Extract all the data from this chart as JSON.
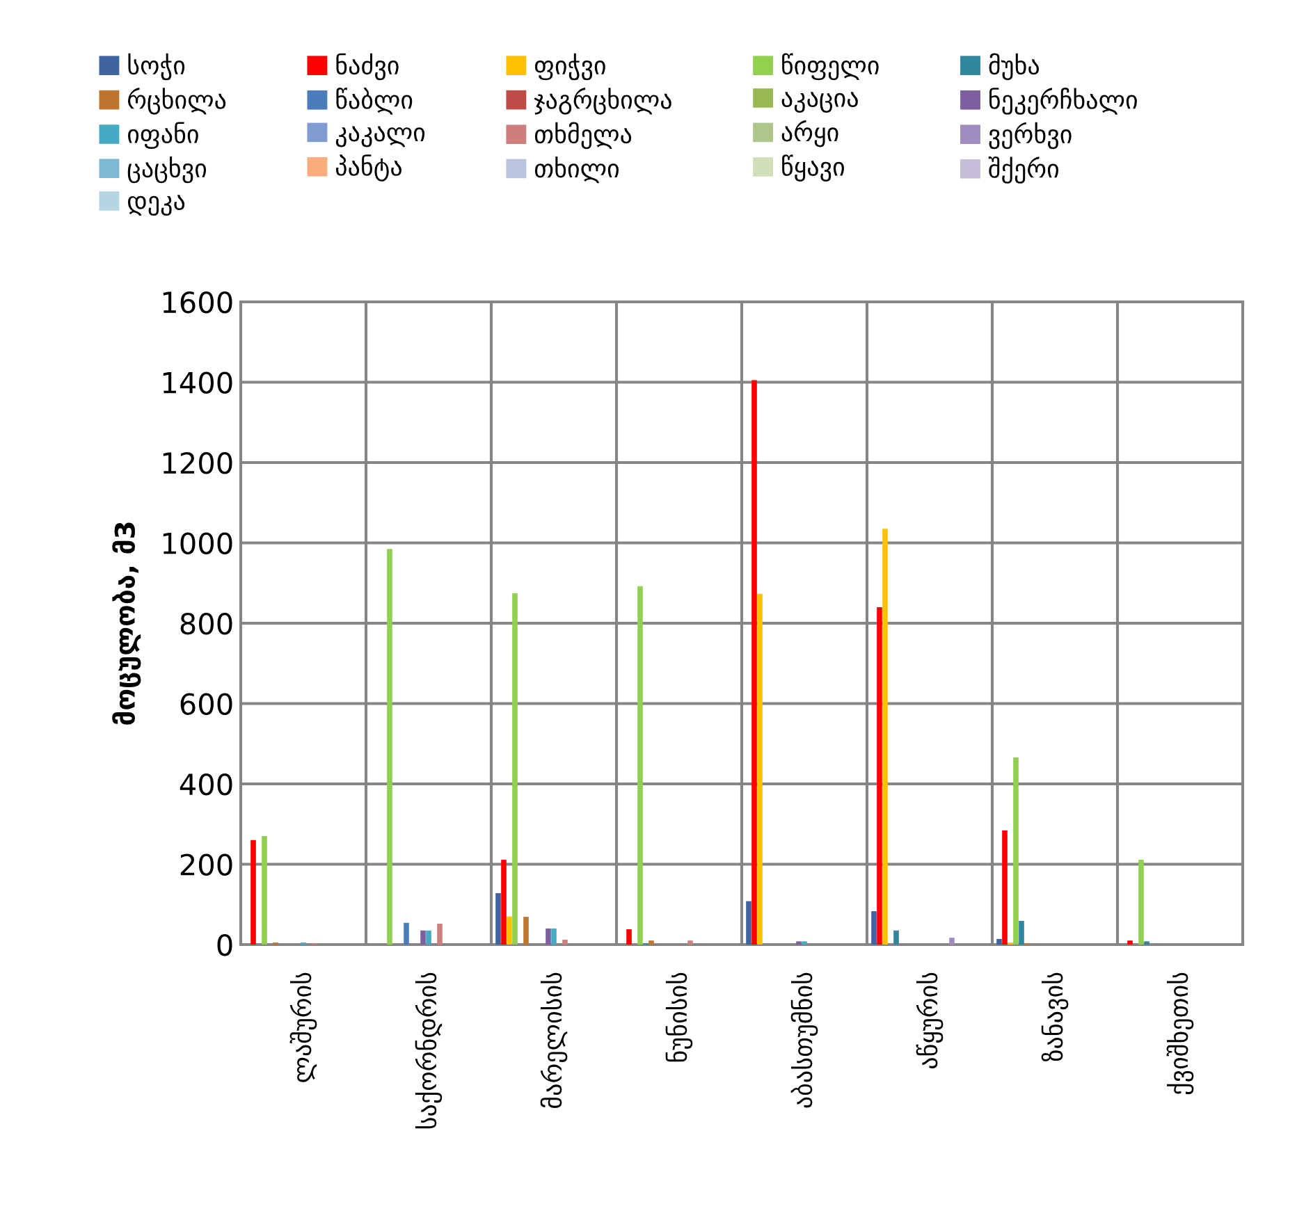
{
  "chart_data": {
    "type": "bar",
    "ylabel": "მოცულობა, მ3",
    "categories": [
      "ლაშურის",
      "საქორნდრის",
      "მარელისის",
      "ნუნისის",
      "აბასთუმნის",
      "აწყურის",
      "ზანავის",
      "ქვიშხეთის"
    ],
    "ylim": [
      0,
      1600
    ],
    "yticks": [
      0,
      200,
      400,
      600,
      800,
      1000,
      1200,
      1400,
      1600
    ],
    "grid": true,
    "legend": "top",
    "series": [
      {
        "name": "სოჭი",
        "color": "#3f64a0",
        "values": [
          0,
          0,
          128,
          0,
          108,
          83,
          14,
          0
        ]
      },
      {
        "name": "ნაძვი",
        "color": "#ff0000",
        "values": [
          260,
          0,
          211,
          38,
          1405,
          840,
          284,
          10
        ]
      },
      {
        "name": "ფიჭვი",
        "color": "#ffc000",
        "values": [
          0,
          0,
          70,
          0,
          873,
          1035,
          5,
          0
        ]
      },
      {
        "name": "წიფელი",
        "color": "#92d050",
        "values": [
          270,
          985,
          875,
          892,
          0,
          0,
          466,
          211
        ]
      },
      {
        "name": "მუხა",
        "color": "#31859c",
        "values": [
          0,
          0,
          0,
          3,
          0,
          35,
          59,
          8
        ]
      },
      {
        "name": "რცხილა",
        "color": "#c0752e",
        "values": [
          5,
          0,
          69,
          10,
          0,
          0,
          3,
          0
        ]
      },
      {
        "name": "წაბლი",
        "color": "#4a7ebb",
        "values": [
          0,
          54,
          0,
          0,
          0,
          0,
          0,
          0
        ]
      },
      {
        "name": "ჯაგრცხილა",
        "color": "#be4b48",
        "values": [
          0,
          0,
          0,
          0,
          0,
          0,
          0,
          0
        ]
      },
      {
        "name": "აკაცია",
        "color": "#98b954",
        "values": [
          0,
          0,
          0,
          0,
          0,
          0,
          0,
          0
        ]
      },
      {
        "name": "ნეკერჩხალი",
        "color": "#7d60a0",
        "values": [
          null,
          35,
          40,
          0,
          8,
          0,
          0,
          0
        ]
      },
      {
        "name": "იფანი",
        "color": "#46aac5",
        "values": [
          5,
          35,
          40,
          0,
          8,
          0,
          0,
          0
        ]
      },
      {
        "name": "კაკალი",
        "color": "#7f9bcf",
        "values": [
          0,
          0,
          0,
          0,
          0,
          0,
          0,
          0
        ]
      },
      {
        "name": "თხმელა",
        "color": "#cd7f7e",
        "values": [
          3,
          52,
          12,
          10,
          0,
          0,
          0,
          0
        ]
      },
      {
        "name": "არყი",
        "color": "#aec68c",
        "values": [
          0,
          0,
          0,
          0,
          0,
          0,
          0,
          0
        ]
      },
      {
        "name": "ვერხვი",
        "color": "#a08cbf",
        "values": [
          0,
          0,
          0,
          0,
          0,
          17,
          0,
          0
        ]
      },
      {
        "name": "ცაცხვი",
        "color": "#7dbad2",
        "values": [
          0,
          0,
          0,
          0,
          0,
          0,
          0,
          0
        ]
      },
      {
        "name": "პანტა",
        "color": "#f9ad7d",
        "values": [
          0,
          0,
          0,
          0,
          0,
          0,
          0,
          0
        ]
      },
      {
        "name": "თხილი",
        "color": "#b9c5e0",
        "values": [
          0,
          0,
          0,
          0,
          0,
          0,
          0,
          0
        ]
      },
      {
        "name": "წყავი",
        "color": "#d0deba",
        "values": [
          0,
          0,
          0,
          0,
          0,
          0,
          0,
          0
        ]
      },
      {
        "name": "შქერი",
        "color": "#c6bdd8",
        "values": [
          0,
          0,
          0,
          0,
          0,
          0,
          0,
          0
        ]
      },
      {
        "name": "დეკა",
        "color": "#b4d6e2",
        "values": [
          0,
          0,
          0,
          0,
          0,
          0,
          0,
          0
        ]
      }
    ]
  }
}
